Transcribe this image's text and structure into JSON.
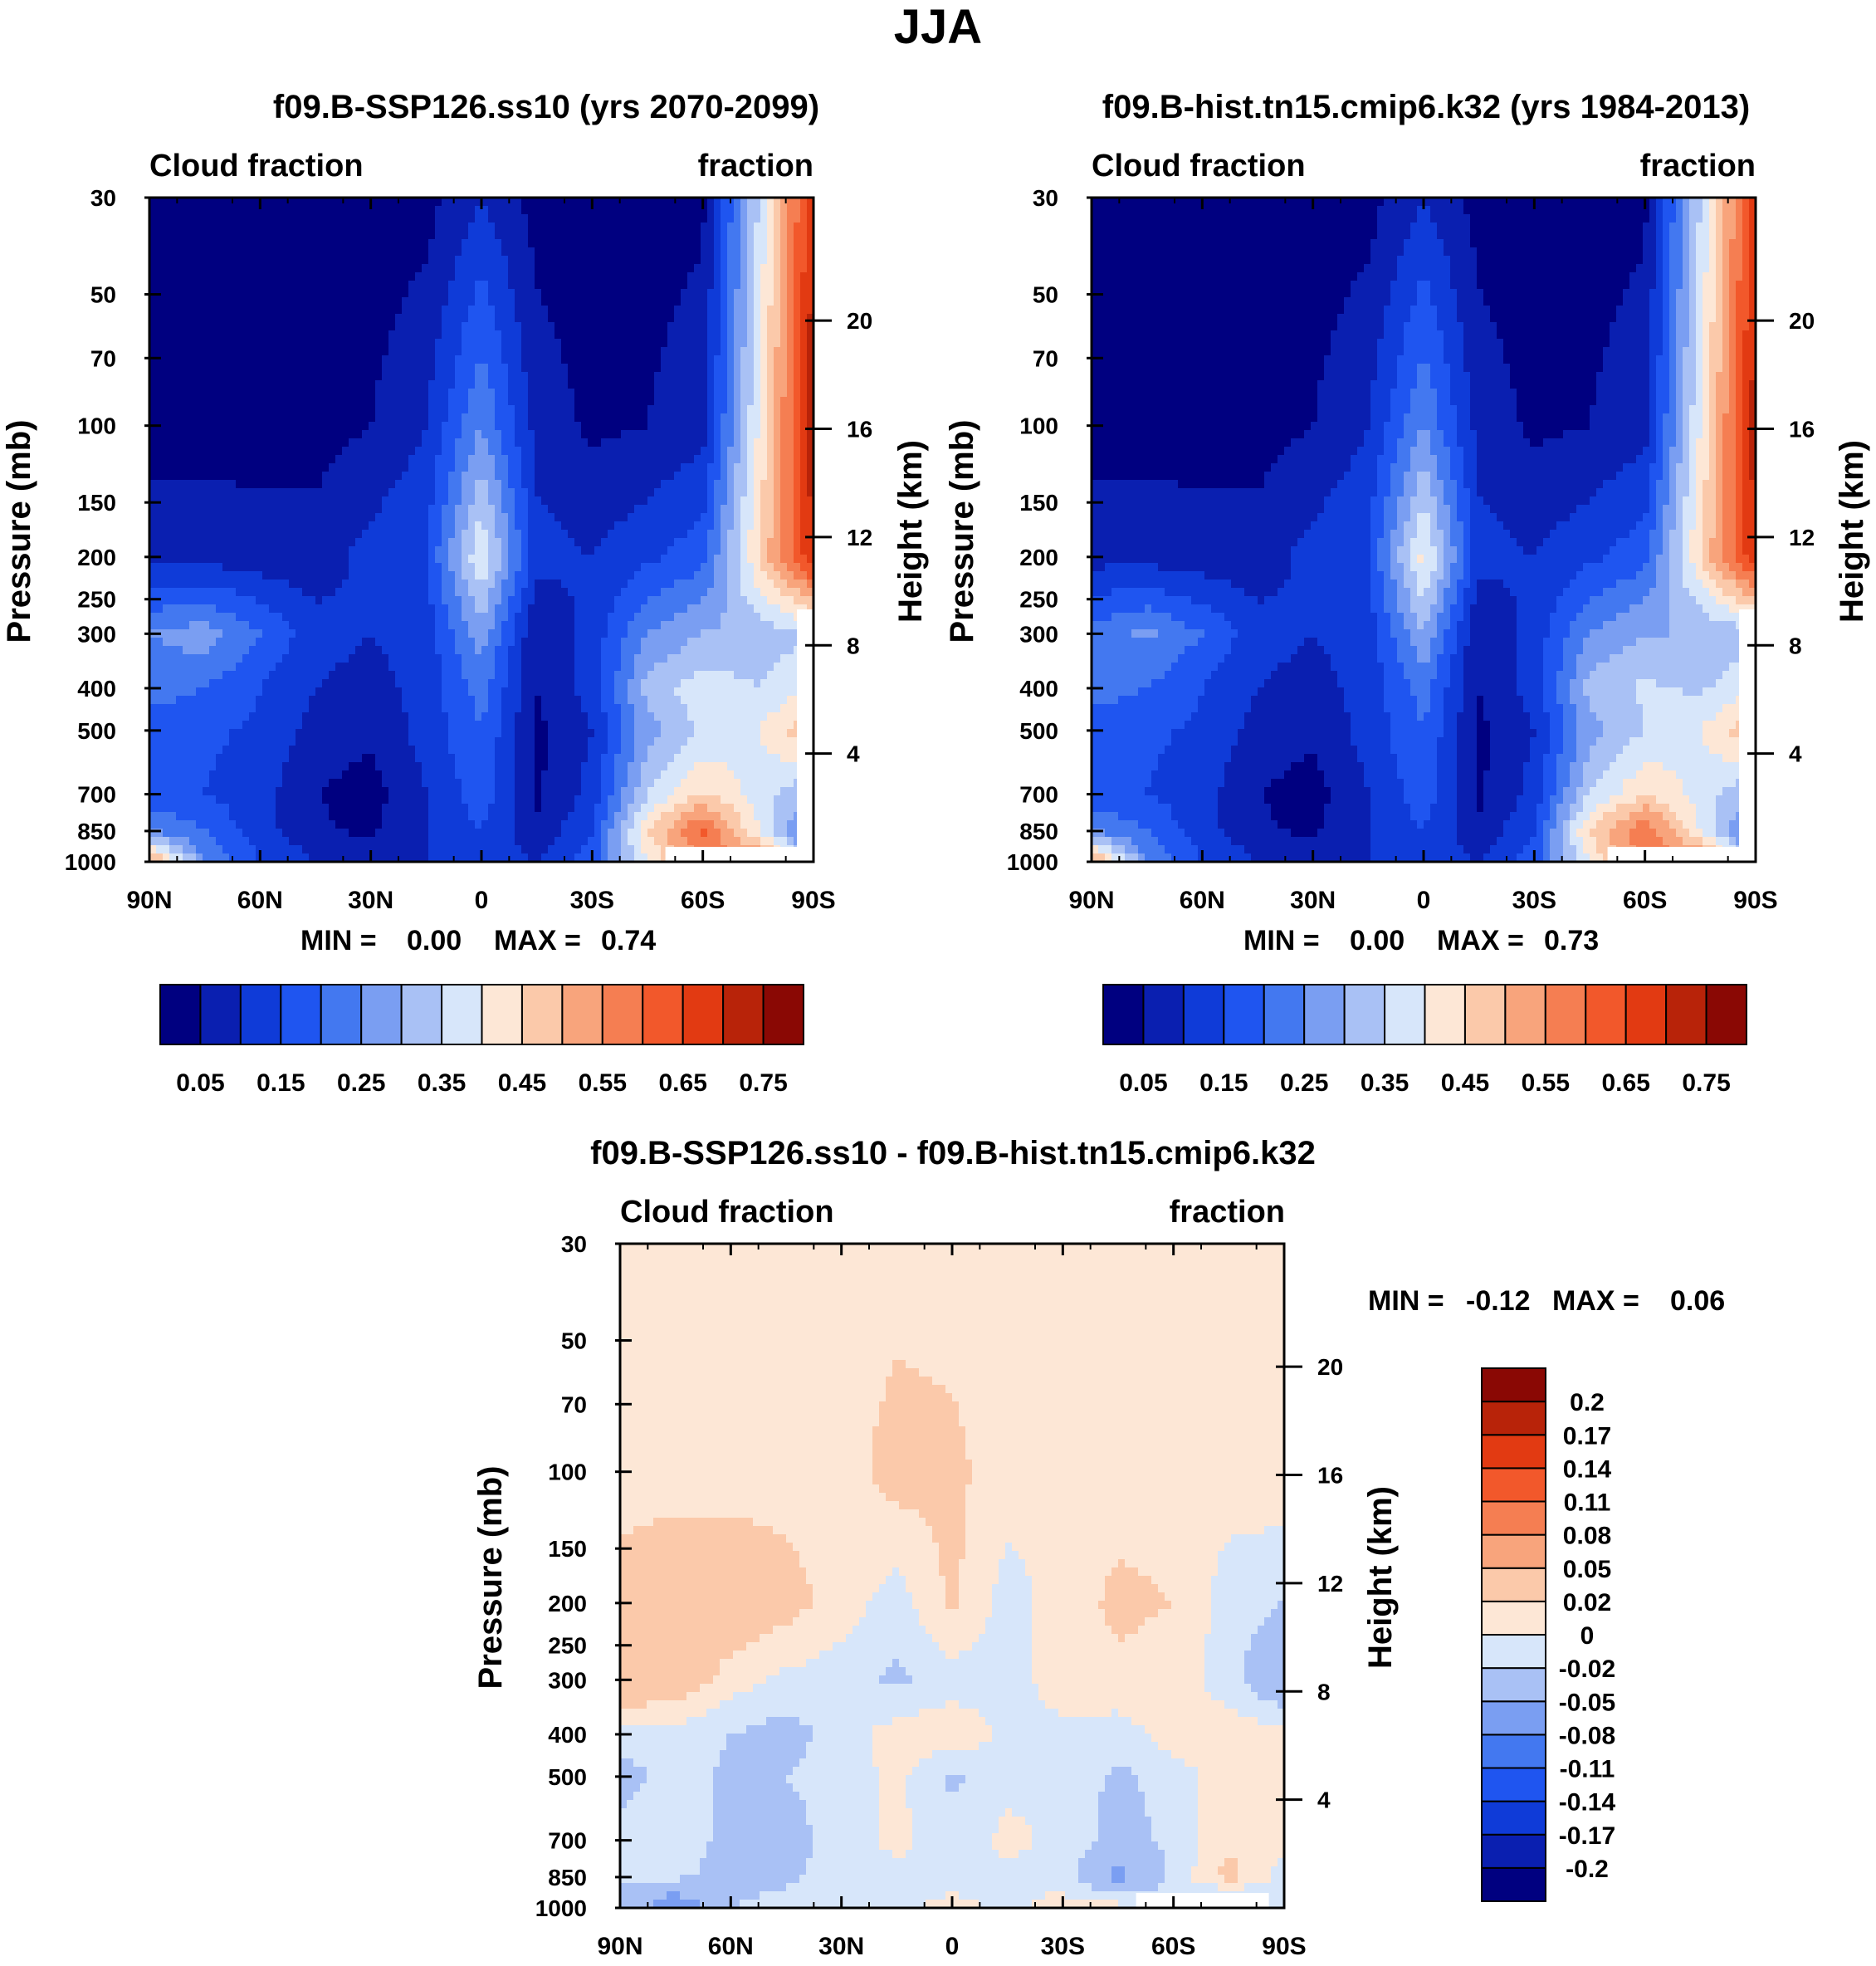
{
  "title": "JJA",
  "chart_data": [
    {
      "type": "heatmap",
      "id": "ssp126",
      "title": "f09.B-SSP126.ss10 (yrs 2070-2099)",
      "left_label": "Cloud fraction",
      "right_label": "fraction",
      "xlabel": "",
      "ylabel": "Pressure (mb)",
      "y2label": "Height (km)",
      "x_ticks": [
        "90N",
        "60N",
        "30N",
        "0",
        "30S",
        "60S",
        "90S"
      ],
      "y_ticks": [
        "30",
        "50",
        "70",
        "100",
        "150",
        "200",
        "250",
        "300",
        "400",
        "500",
        "700",
        "850",
        "1000"
      ],
      "height_ticks": [
        "20",
        "16",
        "12",
        "8",
        "4"
      ],
      "stats": {
        "min_label": "MIN =",
        "min": "0.00",
        "max_label": "MAX =",
        "max": "0.74"
      },
      "lat_samples": [
        90,
        75,
        60,
        45,
        30,
        15,
        0,
        -15,
        -30,
        -45,
        -60,
        -75,
        -90
      ],
      "pressure_samples": [
        30,
        100,
        200,
        300,
        400,
        500,
        700,
        850,
        1000
      ],
      "values": [
        [
          0.02,
          0.02,
          0.02,
          0.02,
          0.02,
          0.03,
          0.1,
          0.03,
          0.02,
          0.03,
          0.04,
          0.35,
          0.7
        ],
        [
          0.03,
          0.03,
          0.03,
          0.03,
          0.05,
          0.1,
          0.25,
          0.08,
          0.04,
          0.05,
          0.08,
          0.4,
          0.74
        ],
        [
          0.08,
          0.08,
          0.07,
          0.07,
          0.12,
          0.15,
          0.4,
          0.12,
          0.1,
          0.14,
          0.18,
          0.45,
          0.7
        ],
        [
          0.25,
          0.28,
          0.2,
          0.12,
          0.1,
          0.12,
          0.28,
          0.05,
          0.12,
          0.25,
          0.3,
          0.32,
          0.35
        ],
        [
          0.22,
          0.2,
          0.15,
          0.1,
          0.08,
          0.12,
          0.22,
          0.05,
          0.12,
          0.32,
          0.38,
          0.35,
          0.4
        ],
        [
          0.18,
          0.16,
          0.14,
          0.08,
          0.06,
          0.12,
          0.2,
          0.04,
          0.1,
          0.28,
          0.36,
          0.4,
          0.5
        ],
        [
          0.17,
          0.15,
          0.12,
          0.05,
          0.03,
          0.1,
          0.18,
          0.04,
          0.12,
          0.35,
          0.45,
          0.38,
          0.3
        ],
        [
          0.25,
          0.2,
          0.12,
          0.06,
          0.04,
          0.1,
          0.15,
          0.06,
          0.15,
          0.45,
          0.62,
          0.4,
          0.2
        ],
        [
          0.55,
          0.25,
          0.15,
          0.1,
          0.08,
          0.1,
          0.12,
          0.1,
          0.18,
          0.4,
          0.55,
          0.6,
          0.25
        ]
      ],
      "ylim": [
        1000,
        30
      ],
      "xlim": [
        90,
        -90
      ]
    },
    {
      "type": "heatmap",
      "id": "hist",
      "title": "f09.B-hist.tn15.cmip6.k32 (yrs 1984-2013)",
      "left_label": "Cloud fraction",
      "right_label": "fraction",
      "xlabel": "",
      "ylabel": "Pressure (mb)",
      "y2label": "Height (km)",
      "x_ticks": [
        "90N",
        "60N",
        "30N",
        "0",
        "30S",
        "60S",
        "90S"
      ],
      "y_ticks": [
        "30",
        "50",
        "70",
        "100",
        "150",
        "200",
        "250",
        "300",
        "400",
        "500",
        "700",
        "850",
        "1000"
      ],
      "height_ticks": [
        "20",
        "16",
        "12",
        "8",
        "4"
      ],
      "stats": {
        "min_label": "MIN =",
        "min": "0.00",
        "max_label": "MAX =",
        "max": "0.73"
      },
      "lat_samples": [
        90,
        75,
        60,
        45,
        30,
        15,
        0,
        -15,
        -30,
        -45,
        -60,
        -75,
        -90
      ],
      "pressure_samples": [
        30,
        100,
        200,
        300,
        400,
        500,
        700,
        850,
        1000
      ],
      "values": [
        [
          0.02,
          0.02,
          0.02,
          0.02,
          0.02,
          0.03,
          0.1,
          0.03,
          0.02,
          0.03,
          0.04,
          0.35,
          0.68
        ],
        [
          0.03,
          0.03,
          0.03,
          0.03,
          0.05,
          0.1,
          0.25,
          0.08,
          0.04,
          0.05,
          0.08,
          0.4,
          0.73
        ],
        [
          0.08,
          0.08,
          0.07,
          0.07,
          0.12,
          0.15,
          0.42,
          0.12,
          0.1,
          0.14,
          0.18,
          0.45,
          0.7
        ],
        [
          0.22,
          0.26,
          0.2,
          0.12,
          0.1,
          0.12,
          0.3,
          0.05,
          0.12,
          0.25,
          0.3,
          0.3,
          0.33
        ],
        [
          0.22,
          0.2,
          0.15,
          0.1,
          0.08,
          0.12,
          0.22,
          0.05,
          0.12,
          0.32,
          0.36,
          0.34,
          0.4
        ],
        [
          0.18,
          0.16,
          0.14,
          0.08,
          0.06,
          0.12,
          0.2,
          0.04,
          0.1,
          0.28,
          0.35,
          0.4,
          0.5
        ],
        [
          0.17,
          0.15,
          0.12,
          0.05,
          0.03,
          0.1,
          0.18,
          0.04,
          0.12,
          0.35,
          0.45,
          0.38,
          0.3
        ],
        [
          0.25,
          0.2,
          0.12,
          0.06,
          0.04,
          0.1,
          0.15,
          0.06,
          0.15,
          0.46,
          0.6,
          0.4,
          0.2
        ],
        [
          0.55,
          0.25,
          0.15,
          0.1,
          0.08,
          0.1,
          0.12,
          0.1,
          0.18,
          0.4,
          0.55,
          0.6,
          0.25
        ]
      ],
      "ylim": [
        1000,
        30
      ],
      "xlim": [
        90,
        -90
      ]
    },
    {
      "type": "heatmap",
      "id": "diff",
      "title": "f09.B-SSP126.ss10 - f09.B-hist.tn15.cmip6.k32",
      "left_label": "Cloud fraction",
      "right_label": "fraction",
      "xlabel": "",
      "ylabel": "Pressure (mb)",
      "y2label": "Height (km)",
      "x_ticks": [
        "90N",
        "60N",
        "30N",
        "0",
        "30S",
        "60S",
        "90S"
      ],
      "y_ticks": [
        "30",
        "50",
        "70",
        "100",
        "150",
        "200",
        "250",
        "300",
        "400",
        "500",
        "700",
        "850",
        "1000"
      ],
      "height_ticks": [
        "20",
        "16",
        "12",
        "8",
        "4"
      ],
      "stats": {
        "min_label": "MIN =",
        "min": "-0.12",
        "max_label": "MAX =",
        "max": "0.06"
      },
      "lat_samples": [
        90,
        75,
        60,
        45,
        30,
        15,
        0,
        -15,
        -30,
        -45,
        -60,
        -75,
        -90
      ],
      "pressure_samples": [
        30,
        100,
        200,
        300,
        400,
        500,
        700,
        850,
        1000
      ],
      "values": [
        [
          0.01,
          0.01,
          0.01,
          0.01,
          0.01,
          0.01,
          0.01,
          0.01,
          0.01,
          0.01,
          0.01,
          0.01,
          0.01
        ],
        [
          0.01,
          0.01,
          0.01,
          0.01,
          0.01,
          0.03,
          0.025,
          0.01,
          0.01,
          0.01,
          0.01,
          0.01,
          0.015
        ],
        [
          0.03,
          0.04,
          0.04,
          0.03,
          0.01,
          -0.01,
          0.025,
          -0.01,
          0.01,
          0.025,
          0.02,
          -0.01,
          -0.02
        ],
        [
          0.05,
          0.04,
          0.01,
          -0.005,
          -0.01,
          -0.025,
          -0.01,
          -0.01,
          0.01,
          0.015,
          0.01,
          -0.01,
          -0.05
        ],
        [
          -0.01,
          -0.01,
          -0.02,
          -0.03,
          -0.01,
          0.01,
          0.015,
          -0.005,
          -0.005,
          -0.01,
          0.01,
          0.01,
          0.01
        ],
        [
          -0.03,
          -0.01,
          -0.025,
          -0.02,
          -0.01,
          0.005,
          -0.025,
          -0.005,
          -0.005,
          -0.025,
          -0.01,
          0.01,
          0.005
        ],
        [
          -0.01,
          -0.01,
          -0.025,
          -0.03,
          -0.01,
          0.005,
          -0.01,
          0.005,
          -0.005,
          -0.03,
          -0.015,
          0.015,
          0.005
        ],
        [
          -0.02,
          -0.015,
          -0.03,
          -0.025,
          -0.01,
          -0.005,
          -0.005,
          -0.005,
          -0.01,
          -0.06,
          -0.015,
          0.03,
          -0.01
        ],
        [
          -0.02,
          -0.08,
          -0.02,
          -0.01,
          -0.005,
          -0.005,
          0.005,
          -0.005,
          0.01,
          0.01,
          -0.01,
          -0.05,
          -0.01
        ]
      ],
      "ylim": [
        1000,
        30
      ],
      "xlim": [
        90,
        -90
      ]
    }
  ],
  "colorbars": {
    "abs": {
      "levels": [
        0.0,
        0.05,
        0.1,
        0.15,
        0.2,
        0.25,
        0.3,
        0.35,
        0.4,
        0.45,
        0.5,
        0.55,
        0.6,
        0.65,
        0.7,
        0.75,
        0.8
      ],
      "tick_labels": [
        "0.05",
        "0.15",
        "0.25",
        "0.35",
        "0.45",
        "0.55",
        "0.65",
        "0.75"
      ]
    },
    "diff": {
      "levels": [
        -0.23,
        -0.2,
        -0.17,
        -0.14,
        -0.11,
        -0.08,
        -0.05,
        -0.02,
        0,
        0.02,
        0.05,
        0.08,
        0.11,
        0.14,
        0.17,
        0.2,
        0.23
      ],
      "tick_labels": [
        "-0.2",
        "-0.17",
        "-0.14",
        "-0.11",
        "-0.08",
        "-0.05",
        "-0.02",
        "0",
        "0.02",
        "0.05",
        "0.08",
        "0.11",
        "0.14",
        "0.17",
        "0.2"
      ]
    },
    "colors": [
      "#000080",
      "#0a1fb0",
      "#0f3bd8",
      "#1f55f0",
      "#4378f0",
      "#7a9ef2",
      "#a9c1f5",
      "#d7e6fa",
      "#fde7d6",
      "#fbc9aa",
      "#f8a47c",
      "#f57e52",
      "#f2582b",
      "#e23a12",
      "#b82309",
      "#8a0804"
    ]
  }
}
